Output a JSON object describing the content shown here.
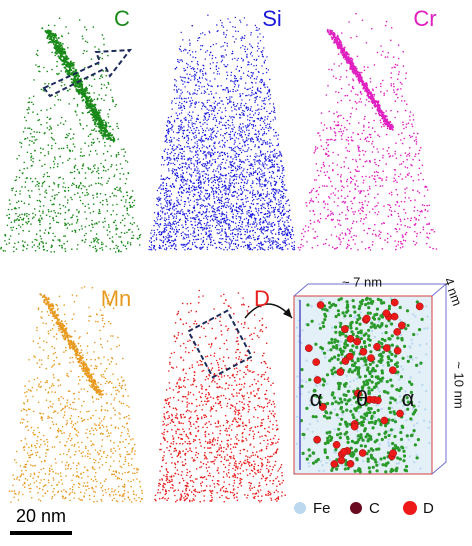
{
  "panels": [
    {
      "label": "C",
      "color": "#1a8a1a"
    },
    {
      "label": "Si",
      "color": "#1a1adc"
    },
    {
      "label": "Cr",
      "color": "#e020c0"
    },
    {
      "label": "Mn",
      "color": "#e89a20"
    },
    {
      "label": "D",
      "color": "#e82020"
    }
  ],
  "inset": {
    "width_label": "~ 7 nm",
    "depth_label": "4 nm",
    "height_label": "~ 10 nm",
    "phases": [
      "α",
      "θ",
      "α"
    ]
  },
  "legend": [
    {
      "label": "Fe",
      "color": "#bcd8ee"
    },
    {
      "label": "C",
      "color": "#6a0a20"
    },
    {
      "label": "D",
      "color": "#ee1a1a"
    }
  ],
  "scale_bar": "20 nm"
}
